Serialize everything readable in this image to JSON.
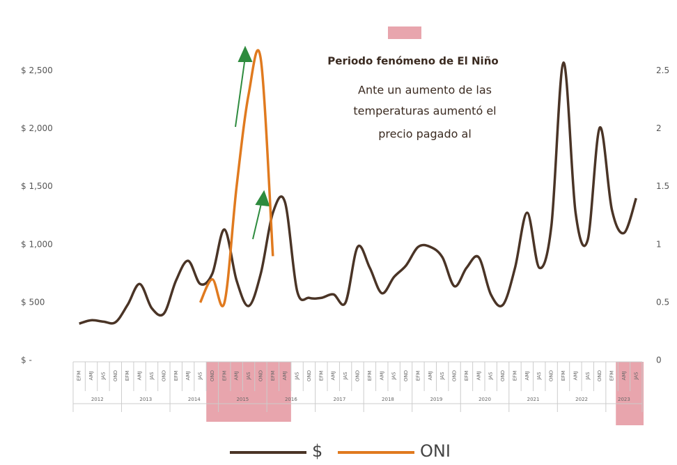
{
  "chart_data": {
    "type": "line",
    "categories": [
      "EFM",
      "AMJ",
      "JAS",
      "OND",
      "EFM",
      "AMJ",
      "JAS",
      "OND",
      "EFM",
      "AMJ",
      "JAS",
      "OND",
      "EFM",
      "AMJ",
      "JAS",
      "OND",
      "EFM",
      "AMJ",
      "JAS",
      "OND",
      "EFM",
      "AMJ",
      "JAS",
      "OND",
      "EFM",
      "AMJ",
      "JAS",
      "OND",
      "EFM",
      "AMJ",
      "JAS",
      "OND",
      "EFM",
      "AMJ",
      "JAS",
      "OND",
      "EFM",
      "AMJ",
      "JAS",
      "OND",
      "EFM",
      "AMJ",
      "JAS",
      "OND",
      "EFM",
      "AMJ",
      "JAS"
    ],
    "category_groups": [
      "2012",
      "2013",
      "2014",
      "2015",
      "2016",
      "2017",
      "2018",
      "2019",
      "2020",
      "2021",
      "2022",
      "2023"
    ],
    "series": [
      {
        "name": "$",
        "color": "#4a3426",
        "values": [
          318,
          347,
          335,
          330,
          480,
          660,
          450,
          405,
          690,
          860,
          660,
          750,
          1130,
          690,
          470,
          750,
          1275,
          1365,
          600,
          540,
          540,
          570,
          500,
          980,
          800,
          580,
          720,
          820,
          980,
          980,
          890,
          640,
          800,
          890,
          570,
          480,
          800,
          1275,
          800,
          1160,
          2570,
          1275,
          1040,
          2010,
          1300,
          1100,
          1400
        ]
      },
      {
        "name": "ONI",
        "color": "#e07a1f",
        "axis": "y2",
        "values": [
          null,
          null,
          null,
          null,
          null,
          null,
          null,
          null,
          null,
          null,
          0.5,
          0.7,
          0.5,
          1.5,
          2.3,
          2.6,
          0.9,
          null,
          null,
          null,
          null,
          null,
          null,
          null,
          null,
          null,
          null,
          null,
          null,
          null,
          null,
          null,
          null,
          null,
          null,
          null,
          null,
          null,
          null,
          null,
          null,
          null,
          null,
          null,
          null,
          null,
          null
        ]
      }
    ],
    "ylim": [
      0,
      2750
    ],
    "yticks": [
      {
        "value": 0,
        "label": "$ -"
      },
      {
        "value": 500,
        "label": "$ 500"
      },
      {
        "value": 1000,
        "label": "$ 1,000"
      },
      {
        "value": 1500,
        "label": "$ 1,500"
      },
      {
        "value": 2000,
        "label": "$ 2,000"
      },
      {
        "value": 2500,
        "label": "$ 2,500"
      }
    ],
    "y2lim": [
      0,
      2.75
    ],
    "y2ticks": [
      0,
      0.5,
      1,
      1.5,
      2,
      2.5
    ],
    "annotation_title": "Periodo fenómeno de El Niño",
    "annotation_lines": [
      "Ante un aumento de las",
      "temperaturas aumentó el",
      "precio pagado al"
    ],
    "highlight_color": "#e8a5ad"
  }
}
